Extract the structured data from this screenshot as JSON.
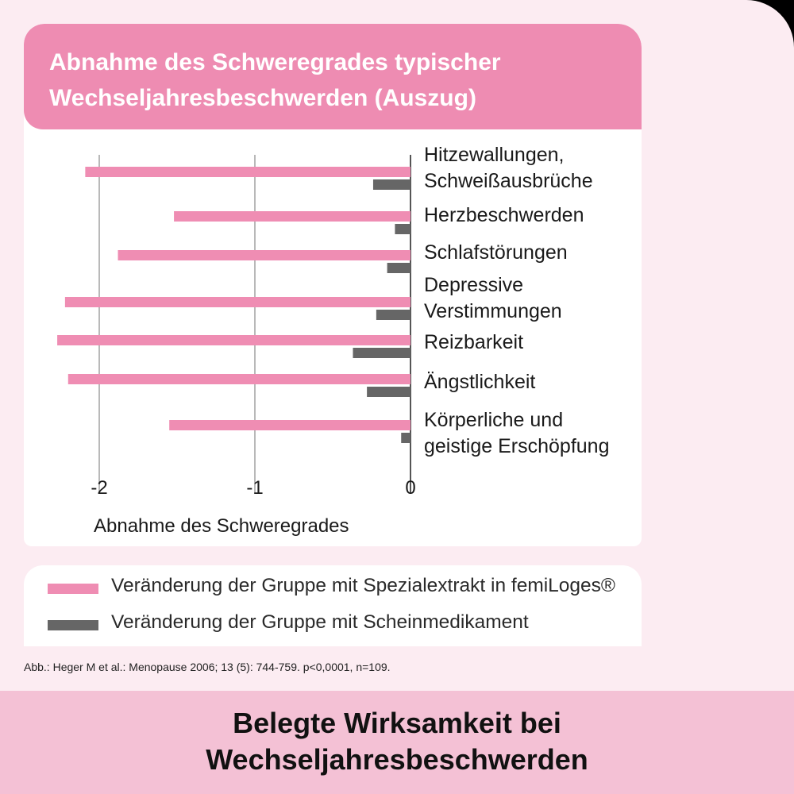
{
  "colors": {
    "accent_pink": "#ee8cb2",
    "bar_pink": "#ef8db3",
    "bar_gray": "#666666",
    "footer_bg": "#f4c1d5",
    "page_bg": "#fcecf2"
  },
  "chart_data": {
    "type": "bar",
    "orientation": "horizontal",
    "title": "Abnahme des Schweregrades typischer\nWechseljahresbeschwerden (Auszug)",
    "xlabel": "Abnahme des Schweregrades",
    "xlim": [
      -2.2,
      0
    ],
    "xticks": [
      -2,
      -1,
      0
    ],
    "xtick_labels": [
      "-2",
      "-1",
      "0"
    ],
    "grid": "vertical lines at ticks",
    "categories": [
      [
        "Hitzewallungen,",
        "Schweißausbrüche"
      ],
      [
        "Herzbeschwerden"
      ],
      [
        "Schlafstörungen"
      ],
      [
        "Depressive",
        "Verstimmungen"
      ],
      [
        "Reizbarkeit"
      ],
      [
        "Ängstlichkeit"
      ],
      [
        "Körperliche und",
        "geistige Erschöpfung"
      ]
    ],
    "series": [
      {
        "name": "Veränderung der Gruppe mit Spezialextrakt in femiLoges®",
        "color": "#ef8db3",
        "values": [
          -2.09,
          -1.52,
          -1.88,
          -2.22,
          -2.27,
          -2.2,
          -1.55
        ]
      },
      {
        "name": "Veränderung der Gruppe mit Scheinmedikament",
        "color": "#666666",
        "values": [
          -0.24,
          -0.1,
          -0.15,
          -0.22,
          -0.37,
          -0.28,
          -0.06
        ]
      }
    ]
  },
  "legend": {
    "items": [
      {
        "label": "Veränderung der Gruppe mit Spezialextrakt in femiLoges®"
      },
      {
        "label": "Veränderung der Gruppe mit Scheinmedikament"
      }
    ]
  },
  "source_note": "Abb.: Heger M et al.: Menopause 2006; 13 (5): 744-759. p<0,0001, n=109.",
  "footer": {
    "text": "Belegte Wirksamkeit bei\nWechseljahresbeschwerden"
  }
}
